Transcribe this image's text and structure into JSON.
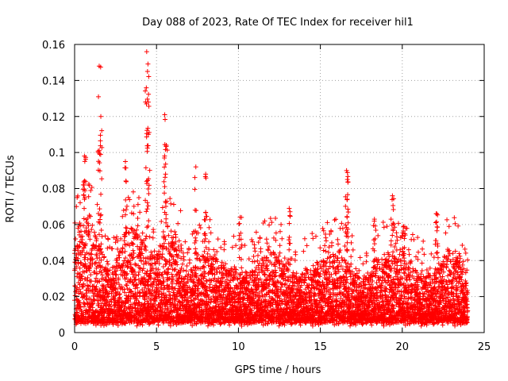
{
  "chart_data": {
    "type": "scatter",
    "title": "Day 088 of 2023, Rate Of TEC Index for receiver hil1",
    "xlabel": "GPS time / hours",
    "ylabel": "ROTI / TECUs",
    "xlim": [
      0,
      25
    ],
    "ylim": [
      0,
      0.16
    ],
    "xticks": [
      0,
      5,
      10,
      15,
      20,
      25
    ],
    "yticks": [
      0,
      0.02,
      0.04,
      0.06,
      0.08,
      0.1,
      0.12,
      0.14,
      0.16
    ],
    "xtick_labels": [
      "0",
      "5",
      "10",
      "15",
      "20",
      "25"
    ],
    "ytick_labels": [
      "0",
      "0.02",
      "0.04",
      "0.06",
      "0.08",
      "0.1",
      "0.12",
      "0.14",
      "0.16"
    ],
    "grid": true,
    "marker": "+",
    "color": "#ff0000",
    "series": [
      {
        "name": "ROTI",
        "data_span_hours": [
          0,
          24
        ],
        "typical_band": [
          0.005,
          0.04
        ],
        "notable_peaks": [
          {
            "x": 0.6,
            "y": 0.098
          },
          {
            "x": 1.5,
            "y": 0.148
          },
          {
            "x": 1.6,
            "y": 0.12
          },
          {
            "x": 3.1,
            "y": 0.095
          },
          {
            "x": 4.4,
            "y": 0.156
          },
          {
            "x": 4.45,
            "y": 0.145
          },
          {
            "x": 4.5,
            "y": 0.128
          },
          {
            "x": 5.5,
            "y": 0.121
          },
          {
            "x": 5.6,
            "y": 0.104
          },
          {
            "x": 7.4,
            "y": 0.092
          },
          {
            "x": 8.0,
            "y": 0.088
          },
          {
            "x": 10.1,
            "y": 0.064
          },
          {
            "x": 13.1,
            "y": 0.069
          },
          {
            "x": 16.6,
            "y": 0.09
          },
          {
            "x": 16.65,
            "y": 0.085
          },
          {
            "x": 18.3,
            "y": 0.063
          },
          {
            "x": 19.4,
            "y": 0.076
          },
          {
            "x": 20.1,
            "y": 0.059
          },
          {
            "x": 22.1,
            "y": 0.066
          }
        ]
      }
    ]
  }
}
